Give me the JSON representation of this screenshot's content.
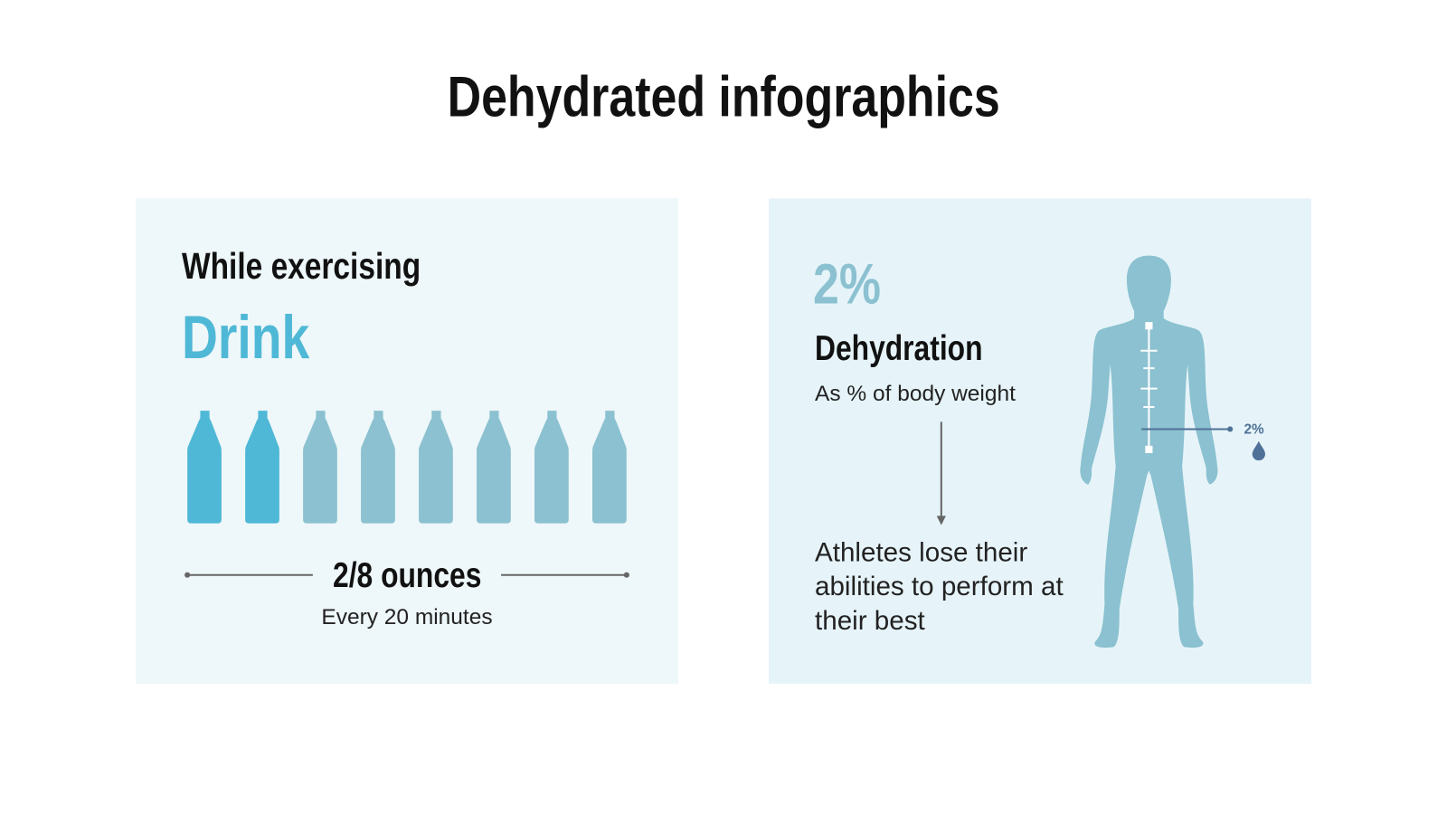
{
  "title": "Dehydrated infographics",
  "left_panel": {
    "heading": "While exercising",
    "highlight": "Drink",
    "bottles": {
      "filled": 2,
      "total": 8
    },
    "amount": "2/8 ounces",
    "frequency": "Every 20 minutes"
  },
  "right_panel": {
    "percent": "2%",
    "heading": "Dehydration",
    "subheading": "As % of body weight",
    "description": "Athletes lose their abilities to perform at their best",
    "body_label": "2%",
    "icons": [
      "human-body-icon",
      "water-drop-icon"
    ]
  },
  "colors": {
    "filled_bottle": "#4fb8d6",
    "empty_bottle": "#8bc1d0",
    "body": "#8bc1d0",
    "accent_dark": "#4f7197",
    "left_bg": "#eef7f9",
    "right_bg": "#e6f4f9"
  }
}
